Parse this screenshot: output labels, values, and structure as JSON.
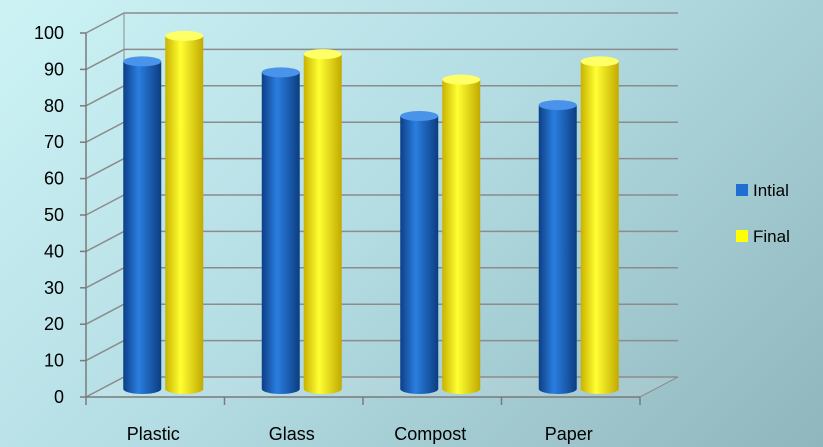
{
  "chart_data": {
    "type": "bar",
    "title": "",
    "xlabel": "",
    "ylabel": "",
    "categories": [
      "Plastic",
      "Glass",
      "Compost",
      "Paper"
    ],
    "series": [
      {
        "name": "Intial",
        "values": [
          90,
          87,
          75,
          78
        ],
        "color": "#1f6fd1"
      },
      {
        "name": "Final",
        "values": [
          97,
          92,
          85,
          90
        ],
        "color": "#ffff00"
      }
    ],
    "ylim": [
      0,
      100
    ],
    "yticks": [
      0,
      10,
      20,
      30,
      40,
      50,
      60,
      70,
      80,
      90,
      100
    ],
    "grid": true,
    "legend": "right",
    "style": "3d-cylinder"
  }
}
